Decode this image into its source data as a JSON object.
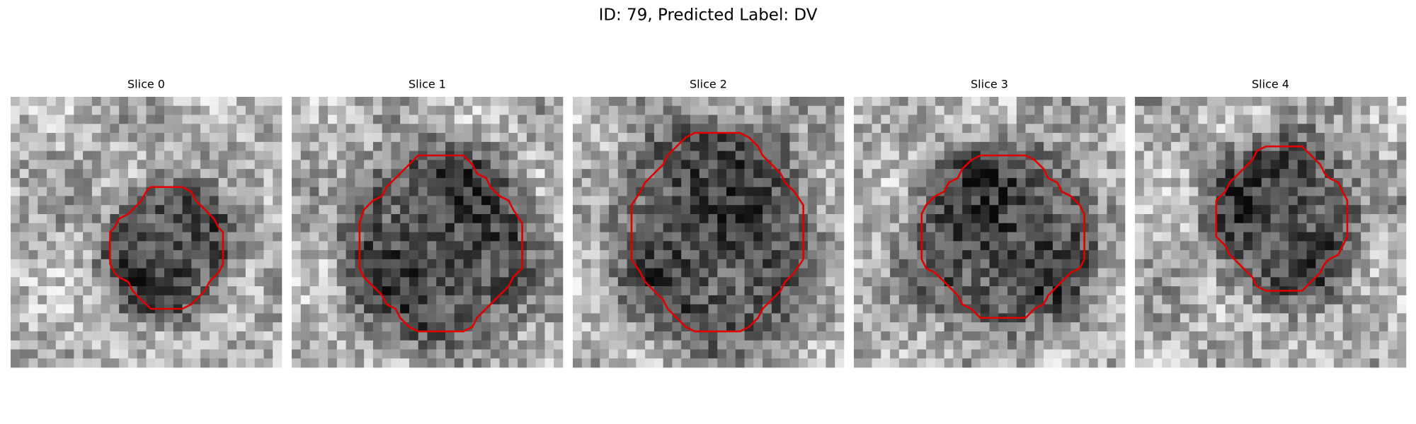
{
  "title": "ID: 79, Predicted Label: DV",
  "panels": [
    {
      "title": "Slice 0"
    },
    {
      "title": "Slice 1"
    },
    {
      "title": "Slice 2"
    },
    {
      "title": "Slice 3"
    },
    {
      "title": "Slice 4"
    }
  ]
}
